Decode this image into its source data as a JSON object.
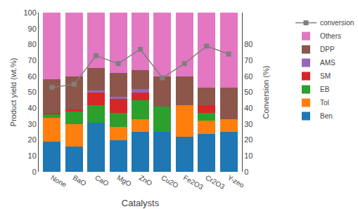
{
  "chart_data": {
    "type": "bar",
    "stacked": true,
    "xlabel": "Catalysts",
    "ylabel": "Product yield (wt.%)",
    "y2label": "Conversion (%)",
    "categories": [
      "None",
      "BaO",
      "CaO",
      "MgO",
      "ZnO",
      "Cu2O",
      "Fe2O3",
      "Cr2O3",
      "Y-zeo"
    ],
    "series": [
      {
        "name": "Ben",
        "type": "bar",
        "values": [
          19,
          16,
          31,
          20,
          25,
          25,
          22,
          24,
          25
        ]
      },
      {
        "name": "Tol",
        "type": "bar",
        "values": [
          15,
          14,
          0,
          8,
          8,
          0,
          20,
          8,
          8
        ]
      },
      {
        "name": "EB",
        "type": "bar",
        "values": [
          2,
          8,
          11,
          9,
          12,
          16,
          0,
          5,
          0
        ]
      },
      {
        "name": "SM",
        "type": "bar",
        "values": [
          1,
          1,
          8,
          9,
          5,
          0,
          0,
          5,
          0
        ]
      },
      {
        "name": "AMS",
        "type": "bar",
        "values": [
          0,
          0,
          1,
          1,
          2,
          0,
          0,
          0,
          0
        ]
      },
      {
        "name": "DPP",
        "type": "bar",
        "values": [
          21,
          21,
          14,
          15,
          12,
          19,
          18,
          11,
          20
        ]
      },
      {
        "name": "Others",
        "type": "bar",
        "values": [
          42,
          40,
          35,
          38,
          36,
          40,
          40,
          47,
          47
        ]
      },
      {
        "name": "conversion",
        "type": "line",
        "axis": "y2",
        "marker": "square",
        "line_style": "solid",
        "values": [
          53,
          55,
          73,
          68,
          77,
          59,
          68,
          79,
          74
        ]
      }
    ],
    "ylim": [
      0,
      100
    ],
    "yticks": [
      0,
      10,
      20,
      30,
      40,
      50,
      60,
      70,
      80,
      90,
      100
    ],
    "y2lim": [
      0,
      100
    ],
    "y2ticks": [
      0,
      10,
      20,
      30,
      40,
      50,
      60,
      70,
      80
    ],
    "grid": false,
    "legend": "upper right"
  }
}
